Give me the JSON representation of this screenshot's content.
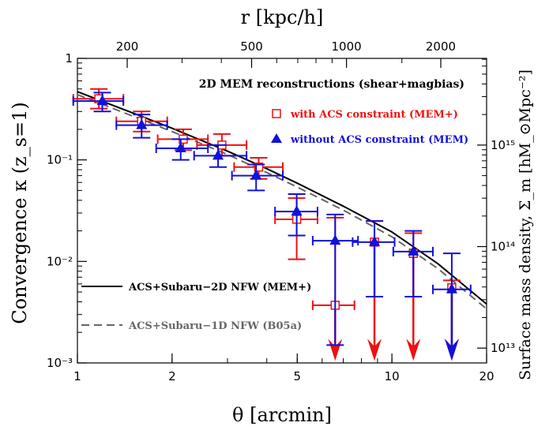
{
  "chart_data": {
    "type": "scatter",
    "x_scale": "log",
    "y_scale": "log",
    "xlim": [
      1,
      20
    ],
    "ylim": [
      0.001,
      1
    ],
    "xlabel": "θ [arcmin]",
    "ylabel": "Convergence κ (z_s=1)",
    "top_axis_label": "r [kpc/h]",
    "right_axis_label": "Surface mass density, Σ_m [hM_⊙Mpc⁻²]",
    "x_ticks": [
      {
        "value": 1,
        "label": "1"
      },
      {
        "value": 2,
        "label": "2"
      },
      {
        "value": 5,
        "label": "5"
      },
      {
        "value": 10,
        "label": "10"
      },
      {
        "value": 20,
        "label": "20"
      }
    ],
    "y_ticks": [
      {
        "value": 0.001,
        "label": "10⁻³"
      },
      {
        "value": 0.01,
        "label": "10⁻²"
      },
      {
        "value": 0.1,
        "label": "10⁻¹"
      },
      {
        "value": 1,
        "label": "1"
      }
    ],
    "top_ticks": [
      {
        "value": 1.44,
        "label": "200"
      },
      {
        "value": 3.58,
        "label": "500"
      },
      {
        "value": 7.17,
        "label": "1000"
      },
      {
        "value": 14.3,
        "label": "2000"
      }
    ],
    "right_ticks": [
      {
        "value": 0.0014,
        "label": "10¹³"
      },
      {
        "value": 0.014,
        "label": "10¹⁴"
      },
      {
        "value": 0.14,
        "label": "10¹⁵"
      }
    ],
    "legend_title": "2D MEM reconstructions (shear+magbias)",
    "legend_title_color": "#000000",
    "series": [
      {
        "name": "with ACS constraint (MEM+)",
        "marker": "open-square",
        "color": "#ee1111",
        "points": [
          {
            "x": 1.17,
            "y": 0.4,
            "xlo": 0.97,
            "xhi": 1.4,
            "ylo": 0.32,
            "yhi": 0.5
          },
          {
            "x": 1.6,
            "y": 0.24,
            "xlo": 1.33,
            "xhi": 1.93,
            "ylo": 0.19,
            "yhi": 0.3
          },
          {
            "x": 2.17,
            "y": 0.16,
            "xlo": 1.8,
            "xhi": 2.6,
            "ylo": 0.125,
            "yhi": 0.2
          },
          {
            "x": 2.88,
            "y": 0.14,
            "xlo": 2.4,
            "xhi": 3.45,
            "ylo": 0.11,
            "yhi": 0.18
          },
          {
            "x": 3.77,
            "y": 0.085,
            "xlo": 3.15,
            "xhi": 4.5,
            "ylo": 0.065,
            "yhi": 0.105
          },
          {
            "x": 4.98,
            "y": 0.026,
            "xlo": 4.25,
            "xhi": 5.8,
            "ylo": 0.0105,
            "yhi": 0.042
          },
          {
            "x": 6.6,
            "y": 0.0037,
            "xlo": 5.6,
            "xhi": 7.6,
            "yhi": 0.027,
            "upper_limit": true
          },
          {
            "x": 8.8,
            "y": 0.0155,
            "yhi": 0.025,
            "upper_limit": true
          },
          {
            "x": 11.7,
            "y": 0.012,
            "yhi": 0.019,
            "upper_limit": true
          },
          {
            "x": 15.5,
            "y": 0.0055,
            "yhi": 0.0065,
            "upper_limit": true
          }
        ]
      },
      {
        "name": "without ACS constraint (MEM)",
        "marker": "filled-triangle",
        "color": "#1111dd",
        "points": [
          {
            "x": 1.2,
            "y": 0.38,
            "xlo": 0.97,
            "xhi": 1.4,
            "ylo": 0.3,
            "yhi": 0.46
          },
          {
            "x": 1.6,
            "y": 0.22,
            "xlo": 1.33,
            "xhi": 1.93,
            "ylo": 0.165,
            "yhi": 0.28
          },
          {
            "x": 2.13,
            "y": 0.13,
            "xlo": 1.78,
            "xhi": 2.6,
            "ylo": 0.1,
            "yhi": 0.16
          },
          {
            "x": 2.8,
            "y": 0.11,
            "xlo": 2.35,
            "xhi": 3.45,
            "ylo": 0.085,
            "yhi": 0.14
          },
          {
            "x": 3.7,
            "y": 0.07,
            "xlo": 3.1,
            "xhi": 4.5,
            "ylo": 0.05,
            "yhi": 0.09
          },
          {
            "x": 4.98,
            "y": 0.031,
            "xlo": 4.25,
            "xhi": 5.8,
            "ylo": 0.018,
            "yhi": 0.046
          },
          {
            "x": 6.6,
            "y": 0.016,
            "xlo": 5.6,
            "xhi": 7.8,
            "ylo": 0.0015,
            "yhi": 0.029
          },
          {
            "x": 8.8,
            "y": 0.0155,
            "xlo": 7.5,
            "xhi": 10.2,
            "ylo": 0.0045,
            "yhi": 0.025
          },
          {
            "x": 11.7,
            "y": 0.0125,
            "xlo": 10.1,
            "xhi": 13.5,
            "ylo": 0.0045,
            "yhi": 0.02
          },
          {
            "x": 15.5,
            "y": 0.0053,
            "xlo": 13.5,
            "xhi": 17.8,
            "ylo": 0.0015,
            "yhi": 0.012,
            "upper_limit": true
          }
        ]
      },
      {
        "name": "ACS+Subaru−2D NFW (MEM+)",
        "marker": "solid-line",
        "color": "#000000",
        "points": [
          {
            "x": 1,
            "y": 0.47
          },
          {
            "x": 1.5,
            "y": 0.29
          },
          {
            "x": 2,
            "y": 0.205
          },
          {
            "x": 3,
            "y": 0.122
          },
          {
            "x": 4,
            "y": 0.082
          },
          {
            "x": 5,
            "y": 0.059
          },
          {
            "x": 7,
            "y": 0.035
          },
          {
            "x": 10,
            "y": 0.0195
          },
          {
            "x": 14,
            "y": 0.0095
          },
          {
            "x": 20,
            "y": 0.0038
          }
        ]
      },
      {
        "name": "ACS+Subaru−1D NFW (B05a)",
        "marker": "dashed-line",
        "color": "#666666",
        "points": [
          {
            "x": 1,
            "y": 0.44
          },
          {
            "x": 1.5,
            "y": 0.27
          },
          {
            "x": 2,
            "y": 0.19
          },
          {
            "x": 3,
            "y": 0.113
          },
          {
            "x": 4,
            "y": 0.075
          },
          {
            "x": 5,
            "y": 0.054
          },
          {
            "x": 7,
            "y": 0.032
          },
          {
            "x": 10,
            "y": 0.0175
          },
          {
            "x": 14,
            "y": 0.0085
          },
          {
            "x": 20,
            "y": 0.0034
          }
        ]
      }
    ]
  }
}
